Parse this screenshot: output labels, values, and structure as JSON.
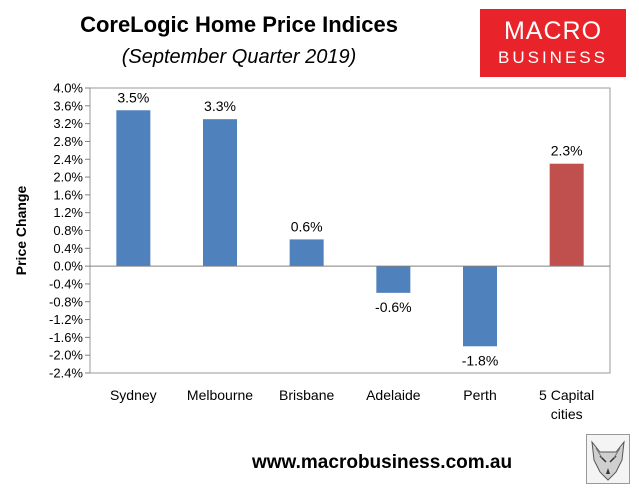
{
  "title": "CoreLogic Home Price Indices",
  "subtitle": "(September Quarter 2019)",
  "logo": {
    "line1": "MACRO",
    "line2": "BUSINESS",
    "bg_color": "#e8242a"
  },
  "footer_url": "www.macrobusiness.com.au",
  "chart_data": {
    "type": "bar",
    "title": "CoreLogic Home Price Indices",
    "subtitle": "(September Quarter 2019)",
    "ylabel": "Price Change",
    "xlabel": "",
    "categories": [
      "Sydney",
      "Melbourne",
      "Brisbane",
      "Adelaide",
      "Perth",
      "5 Capital cities"
    ],
    "category_lines": [
      [
        "Sydney"
      ],
      [
        "Melbourne"
      ],
      [
        "Brisbane"
      ],
      [
        "Adelaide"
      ],
      [
        "Perth"
      ],
      [
        "5 Capital",
        "cities"
      ]
    ],
    "values": [
      3.5,
      3.3,
      0.6,
      -0.6,
      -1.8,
      2.3
    ],
    "data_labels": [
      "3.5%",
      "3.3%",
      "0.6%",
      "-0.6%",
      "-1.8%",
      "2.3%"
    ],
    "colors": [
      "#4f81bd",
      "#4f81bd",
      "#4f81bd",
      "#4f81bd",
      "#4f81bd",
      "#c0504d"
    ],
    "ylim": [
      -2.4,
      4.0
    ],
    "yticks": [
      4.0,
      3.6,
      3.2,
      2.8,
      2.4,
      2.0,
      1.6,
      1.2,
      0.8,
      0.4,
      0.0,
      -0.4,
      -0.8,
      -1.2,
      -1.6,
      -2.0,
      -2.4
    ],
    "ytick_labels": [
      "4.0%",
      "3.6%",
      "3.2%",
      "2.8%",
      "2.4%",
      "2.0%",
      "1.6%",
      "1.2%",
      "0.8%",
      "0.4%",
      "0.0%",
      "-0.4%",
      "-0.8%",
      "-1.2%",
      "-1.6%",
      "-2.0%",
      "-2.4%"
    ],
    "grid": false,
    "legend": "none"
  }
}
